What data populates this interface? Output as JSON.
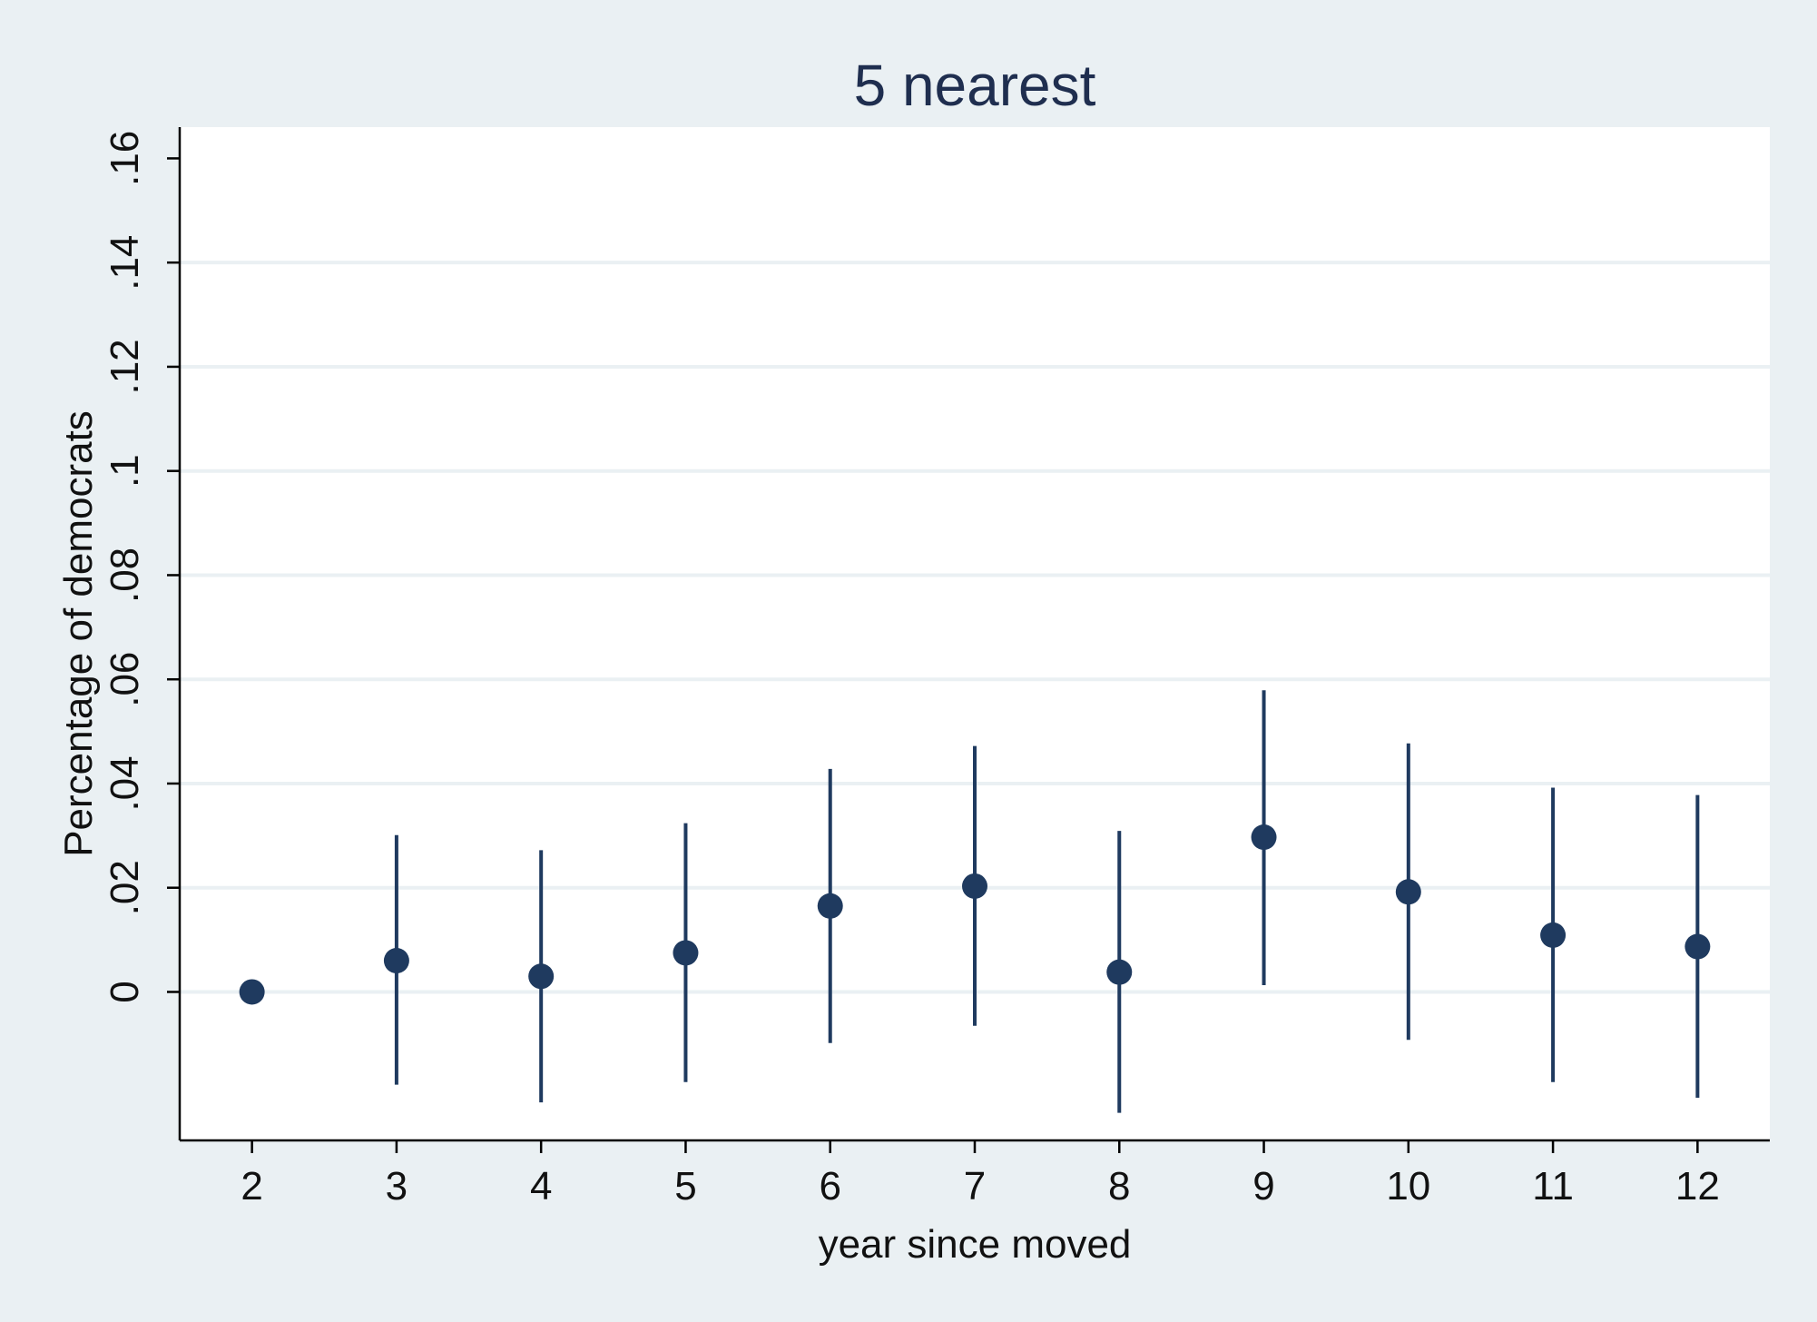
{
  "chart_data": {
    "type": "scatter",
    "title": "5 nearest",
    "xlabel": "year since moved",
    "ylabel": "Percentage of democrats",
    "x_ticks": [
      "2",
      "3",
      "4",
      "5",
      "6",
      "7",
      "8",
      "9",
      "10",
      "11",
      "12"
    ],
    "y_ticks": [
      {
        "value": 0,
        "label": "0"
      },
      {
        "value": 0.02,
        "label": ".02"
      },
      {
        "value": 0.04,
        "label": ".04"
      },
      {
        "value": 0.06,
        "label": ".06"
      },
      {
        "value": 0.08,
        "label": ".08"
      },
      {
        "value": 0.1,
        "label": ".1"
      },
      {
        "value": 0.12,
        "label": ".12"
      },
      {
        "value": 0.14,
        "label": ".14"
      },
      {
        "value": 0.16,
        "label": ".16"
      }
    ],
    "xlim": [
      1.5,
      12.5
    ],
    "ylim": [
      -0.0285,
      0.166
    ],
    "grid": true,
    "series": [
      {
        "x": [
          2,
          3,
          4,
          5,
          6,
          7,
          8,
          9,
          10,
          11,
          12
        ],
        "y": [
          0.0,
          0.006,
          0.003,
          0.0075,
          0.0165,
          0.0203,
          0.0038,
          0.0297,
          0.0192,
          0.0109,
          0.0087
        ],
        "ci_low": [
          0.0,
          -0.0178,
          -0.0212,
          -0.0173,
          -0.0098,
          -0.0065,
          -0.0232,
          0.0013,
          -0.0092,
          -0.0173,
          -0.0203
        ],
        "ci_high": [
          0.0,
          0.0301,
          0.0272,
          0.0324,
          0.0428,
          0.0472,
          0.0309,
          0.0579,
          0.0477,
          0.0392,
          0.0378
        ]
      }
    ],
    "colors": {
      "outer_background": "#eaf0f3",
      "plot_background": "#ffffff",
      "gridline": "#eaf0f3",
      "marker": "#1f3a5f",
      "title": "#1f2e4f",
      "text": "#111111"
    }
  }
}
